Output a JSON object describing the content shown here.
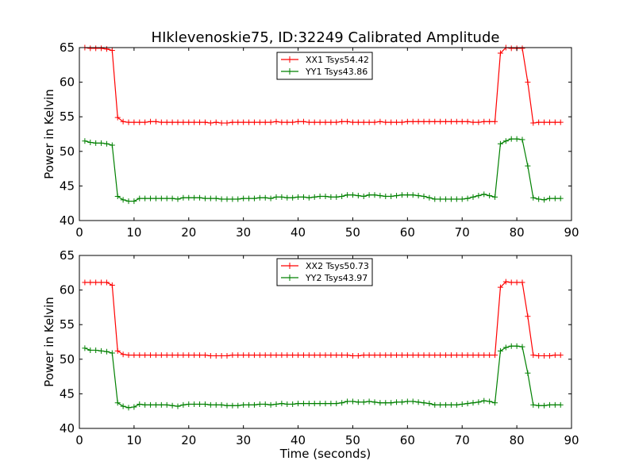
{
  "title": "HIklevenoskie75, ID:32249 Calibrated Amplitude",
  "chart_data": [
    {
      "type": "line",
      "ylabel": "Power in Kelvin",
      "xlabel": "",
      "xlim": [
        0,
        90
      ],
      "ylim": [
        40,
        65
      ],
      "xticks": [
        0,
        10,
        20,
        30,
        40,
        50,
        60,
        70,
        80,
        90
      ],
      "yticks": [
        40,
        45,
        50,
        55,
        60,
        65
      ],
      "grid": false,
      "legend_position": "top-center",
      "x": [
        1,
        2,
        3,
        4,
        5,
        6,
        7,
        8,
        9,
        10,
        11,
        12,
        13,
        14,
        15,
        16,
        17,
        18,
        19,
        20,
        21,
        22,
        23,
        24,
        25,
        26,
        27,
        28,
        29,
        30,
        31,
        32,
        33,
        34,
        35,
        36,
        37,
        38,
        39,
        40,
        41,
        42,
        43,
        44,
        45,
        46,
        47,
        48,
        49,
        50,
        51,
        52,
        53,
        54,
        55,
        56,
        57,
        58,
        59,
        60,
        61,
        62,
        63,
        64,
        65,
        66,
        67,
        68,
        69,
        70,
        71,
        72,
        73,
        74,
        75,
        76,
        77,
        78,
        79,
        80,
        81,
        82,
        83,
        84,
        85,
        86,
        87,
        88
      ],
      "series": [
        {
          "name": "XX1 Tsys54.42",
          "color": "#ff0000",
          "values": [
            65.0,
            64.9,
            64.9,
            64.9,
            64.8,
            64.6,
            54.9,
            54.3,
            54.2,
            54.2,
            54.2,
            54.2,
            54.3,
            54.3,
            54.2,
            54.2,
            54.2,
            54.2,
            54.2,
            54.2,
            54.2,
            54.2,
            54.2,
            54.1,
            54.2,
            54.1,
            54.1,
            54.2,
            54.2,
            54.2,
            54.2,
            54.2,
            54.2,
            54.2,
            54.2,
            54.3,
            54.2,
            54.2,
            54.2,
            54.3,
            54.3,
            54.2,
            54.2,
            54.2,
            54.2,
            54.2,
            54.2,
            54.3,
            54.3,
            54.2,
            54.2,
            54.2,
            54.2,
            54.2,
            54.3,
            54.2,
            54.2,
            54.2,
            54.2,
            54.3,
            54.3,
            54.3,
            54.3,
            54.3,
            54.3,
            54.3,
            54.3,
            54.3,
            54.3,
            54.3,
            54.3,
            54.2,
            54.2,
            54.3,
            54.3,
            54.3,
            64.2,
            65.0,
            64.9,
            64.9,
            64.9,
            60.0,
            54.1,
            54.2,
            54.2,
            54.2,
            54.2,
            54.2
          ]
        },
        {
          "name": "YY1 Tsys43.86",
          "color": "#008000",
          "values": [
            51.5,
            51.3,
            51.2,
            51.2,
            51.1,
            50.9,
            43.5,
            43.0,
            42.8,
            42.8,
            43.2,
            43.2,
            43.2,
            43.2,
            43.2,
            43.2,
            43.2,
            43.1,
            43.3,
            43.3,
            43.3,
            43.3,
            43.2,
            43.2,
            43.2,
            43.1,
            43.1,
            43.1,
            43.1,
            43.2,
            43.2,
            43.2,
            43.3,
            43.3,
            43.2,
            43.4,
            43.4,
            43.3,
            43.3,
            43.4,
            43.4,
            43.3,
            43.4,
            43.5,
            43.5,
            43.4,
            43.4,
            43.5,
            43.7,
            43.7,
            43.6,
            43.5,
            43.7,
            43.7,
            43.6,
            43.5,
            43.5,
            43.6,
            43.7,
            43.7,
            43.7,
            43.6,
            43.5,
            43.3,
            43.1,
            43.1,
            43.1,
            43.1,
            43.1,
            43.1,
            43.2,
            43.4,
            43.6,
            43.8,
            43.6,
            43.4,
            51.1,
            51.5,
            51.8,
            51.8,
            51.7,
            47.9,
            43.3,
            43.1,
            43.0,
            43.2,
            43.2,
            43.2
          ]
        }
      ]
    },
    {
      "type": "line",
      "ylabel": "Power in Kelvin",
      "xlabel": "Time (seconds)",
      "xlim": [
        0,
        90
      ],
      "ylim": [
        40,
        65
      ],
      "xticks": [
        0,
        10,
        20,
        30,
        40,
        50,
        60,
        70,
        80,
        90
      ],
      "yticks": [
        40,
        45,
        50,
        55,
        60,
        65
      ],
      "grid": false,
      "legend_position": "top-center",
      "x": [
        1,
        2,
        3,
        4,
        5,
        6,
        7,
        8,
        9,
        10,
        11,
        12,
        13,
        14,
        15,
        16,
        17,
        18,
        19,
        20,
        21,
        22,
        23,
        24,
        25,
        26,
        27,
        28,
        29,
        30,
        31,
        32,
        33,
        34,
        35,
        36,
        37,
        38,
        39,
        40,
        41,
        42,
        43,
        44,
        45,
        46,
        47,
        48,
        49,
        50,
        51,
        52,
        53,
        54,
        55,
        56,
        57,
        58,
        59,
        60,
        61,
        62,
        63,
        64,
        65,
        66,
        67,
        68,
        69,
        70,
        71,
        72,
        73,
        74,
        75,
        76,
        77,
        78,
        79,
        80,
        81,
        82,
        83,
        84,
        85,
        86,
        87,
        88
      ],
      "series": [
        {
          "name": "XX2 Tsys50.73",
          "color": "#ff0000",
          "values": [
            61.1,
            61.1,
            61.1,
            61.1,
            61.1,
            60.7,
            51.2,
            50.7,
            50.6,
            50.6,
            50.6,
            50.6,
            50.6,
            50.6,
            50.6,
            50.6,
            50.6,
            50.6,
            50.6,
            50.6,
            50.6,
            50.6,
            50.6,
            50.5,
            50.5,
            50.5,
            50.5,
            50.6,
            50.6,
            50.6,
            50.6,
            50.6,
            50.6,
            50.6,
            50.6,
            50.6,
            50.6,
            50.6,
            50.6,
            50.6,
            50.6,
            50.6,
            50.6,
            50.6,
            50.6,
            50.6,
            50.6,
            50.6,
            50.6,
            50.5,
            50.5,
            50.6,
            50.6,
            50.6,
            50.6,
            50.6,
            50.6,
            50.6,
            50.6,
            50.6,
            50.6,
            50.6,
            50.6,
            50.6,
            50.6,
            50.6,
            50.6,
            50.6,
            50.6,
            50.6,
            50.6,
            50.6,
            50.6,
            50.6,
            50.6,
            50.6,
            60.4,
            61.2,
            61.1,
            61.1,
            61.1,
            56.2,
            50.6,
            50.5,
            50.5,
            50.5,
            50.6,
            50.6
          ]
        },
        {
          "name": "YY2 Tsys43.97",
          "color": "#008000",
          "values": [
            51.6,
            51.3,
            51.3,
            51.2,
            51.1,
            50.9,
            43.7,
            43.2,
            43.0,
            43.1,
            43.5,
            43.4,
            43.4,
            43.4,
            43.4,
            43.4,
            43.3,
            43.2,
            43.4,
            43.5,
            43.5,
            43.5,
            43.5,
            43.4,
            43.4,
            43.4,
            43.3,
            43.3,
            43.3,
            43.4,
            43.4,
            43.4,
            43.5,
            43.5,
            43.4,
            43.5,
            43.6,
            43.5,
            43.5,
            43.6,
            43.6,
            43.6,
            43.6,
            43.6,
            43.6,
            43.6,
            43.6,
            43.7,
            43.9,
            43.9,
            43.8,
            43.8,
            43.9,
            43.8,
            43.7,
            43.7,
            43.7,
            43.8,
            43.8,
            43.9,
            43.9,
            43.8,
            43.7,
            43.6,
            43.4,
            43.4,
            43.4,
            43.4,
            43.4,
            43.5,
            43.6,
            43.7,
            43.8,
            44.0,
            43.9,
            43.7,
            51.2,
            51.7,
            51.9,
            51.9,
            51.8,
            48.0,
            43.4,
            43.3,
            43.3,
            43.4,
            43.4,
            43.4
          ]
        }
      ]
    }
  ]
}
